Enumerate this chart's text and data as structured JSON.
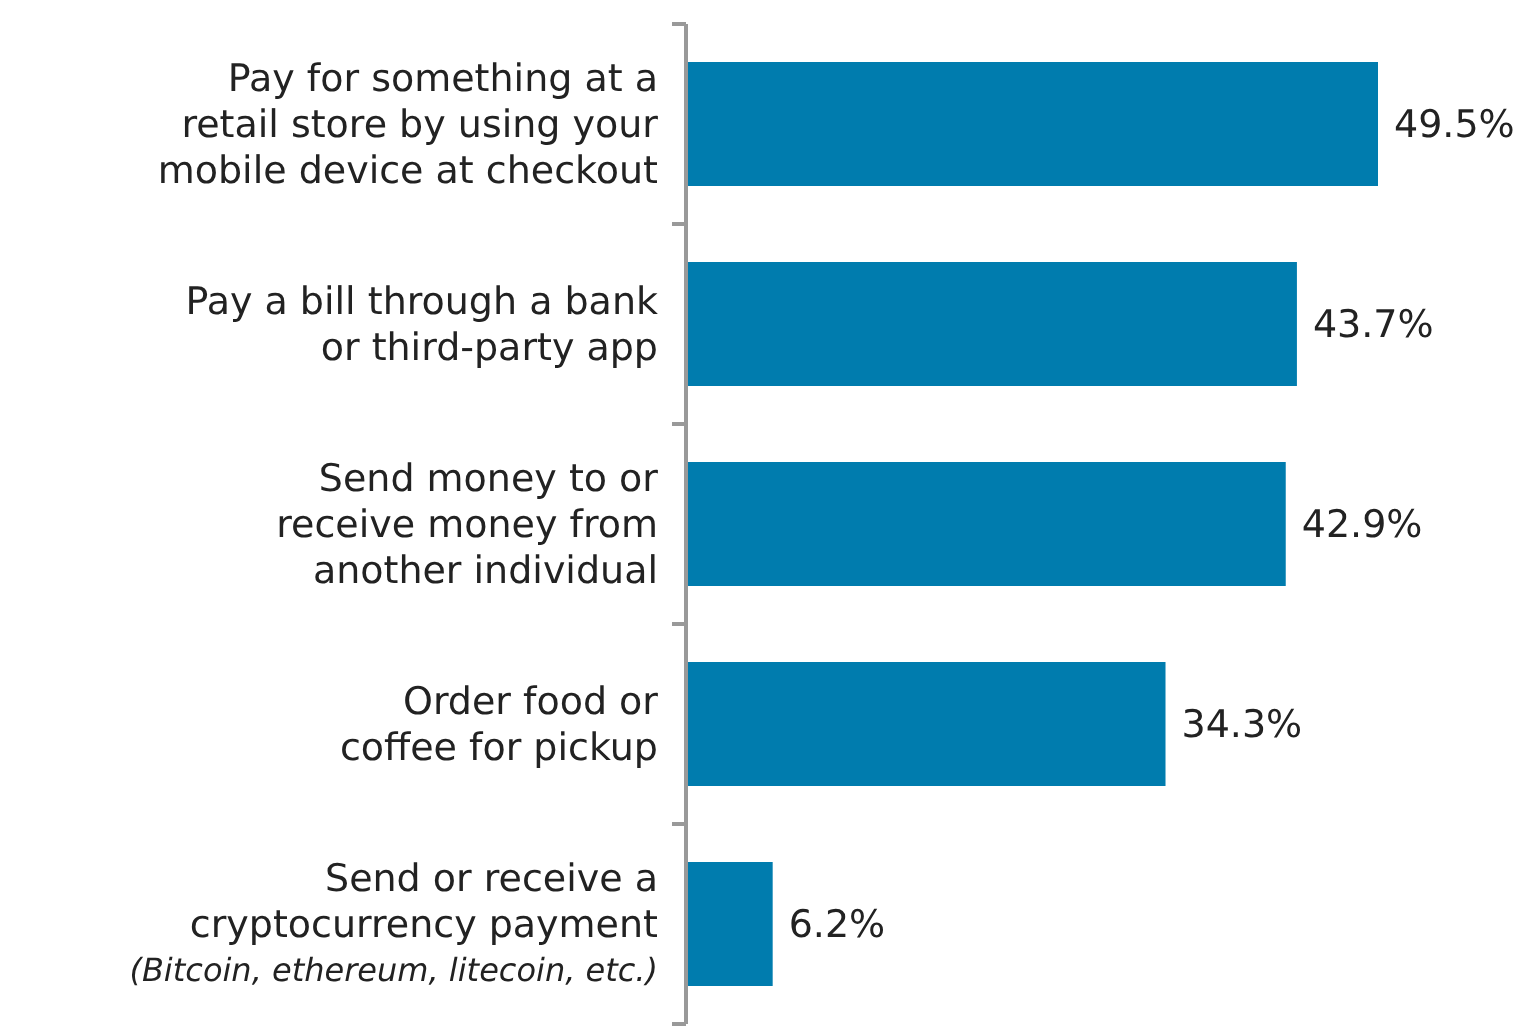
{
  "chart_data": {
    "type": "bar",
    "orientation": "horizontal",
    "data_labels": true,
    "categories": [
      "Pay for something at a\nretail store by using your\nmobile device at checkout",
      "Pay a bill through a bank\nor third-party app",
      "Send money to or\nreceive money from\nanother individual",
      "Order food or\ncoffee for pickup",
      "Send or receive a\ncryptocurrency payment\n(Bitcoin, ethereum, litecoin, etc.)"
    ],
    "values": [
      49.5,
      43.7,
      42.9,
      34.3,
      6.2
    ],
    "value_labels": [
      "49.5%",
      "43.7%",
      "42.9%",
      "34.3%",
      "6.2%"
    ],
    "color": "#007cae"
  }
}
